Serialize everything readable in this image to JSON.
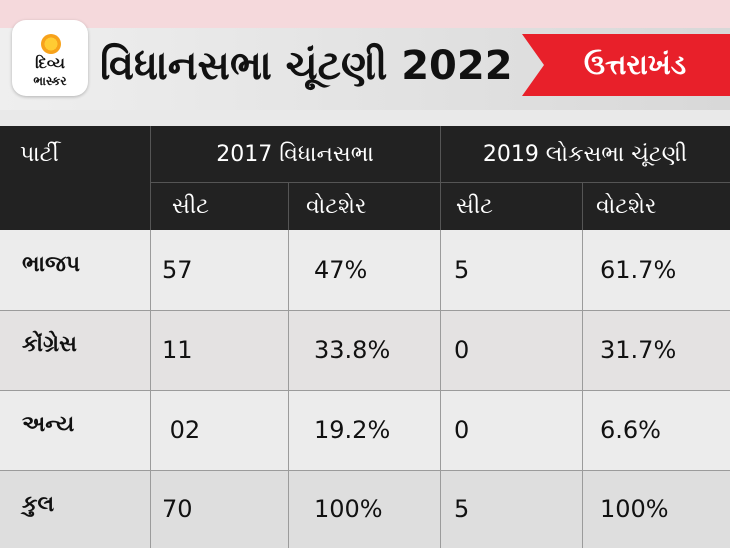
{
  "header": {
    "logo_line1": "દિવ્ય",
    "logo_line2": "ભાસ્કર",
    "title": "વિધાનસભા ચૂંટણી 2022",
    "state": "ઉત્તરાખંડ"
  },
  "table": {
    "party_header": "પાર્ટી",
    "group1_header": "2017 વિધાનસભા",
    "group2_header": "2019 લોકસભા ચૂંટણી",
    "sub_headers": [
      "સીટ",
      "વોટશેર",
      "સીટ",
      "વોટશેર"
    ],
    "rows": [
      {
        "party": "ભાજપ",
        "seats_2017": "57",
        "share_2017": "47%",
        "seats_2019": "5",
        "share_2019": "61.7%"
      },
      {
        "party": "કોંગ્રેસ",
        "seats_2017": "11",
        "share_2017": "33.8%",
        "seats_2019": "0",
        "share_2019": "31.7%"
      },
      {
        "party": "અન્ય",
        "seats_2017": " 02",
        "share_2017": "19.2%",
        "seats_2019": "0",
        "share_2019": "6.6%"
      },
      {
        "party": "કુલ",
        "seats_2017": "70",
        "share_2017": "100%",
        "seats_2019": "5",
        "share_2019": "100%"
      }
    ]
  },
  "colors": {
    "accent_red": "#e8202a",
    "header_dark": "#222222"
  }
}
